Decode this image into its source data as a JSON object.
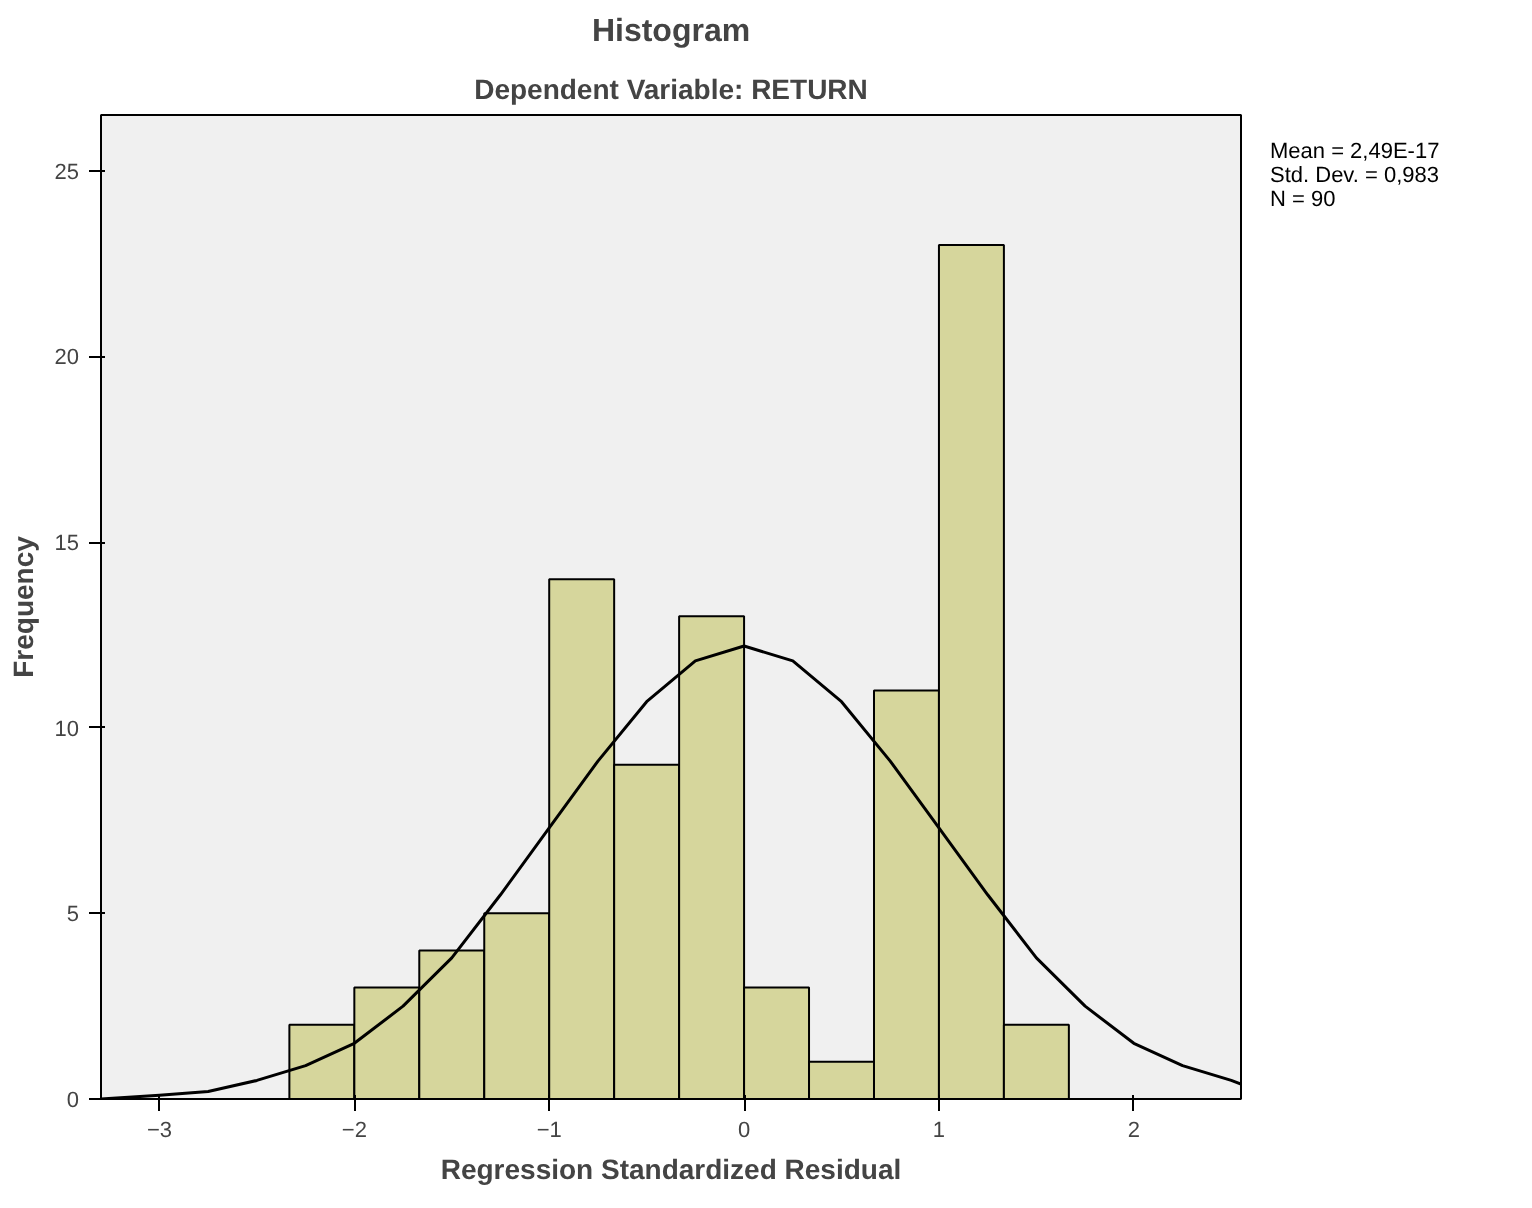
{
  "chart_data": {
    "type": "histogram",
    "title": "Histogram",
    "subtitle": "Dependent Variable: RETURN",
    "xlabel": "Regression Standardized Residual",
    "ylabel": "Frequency",
    "bins": [
      -2.3333,
      -2.0,
      -1.6667,
      -1.3333,
      -1.0,
      -0.6667,
      -0.3333,
      0.0,
      0.3333,
      0.6667,
      1.0,
      1.3333,
      1.6667
    ],
    "values": [
      2,
      3,
      4,
      5,
      14,
      9,
      13,
      3,
      1,
      11,
      23,
      2
    ],
    "color": "#d6d69c",
    "series": [
      {
        "type": "line",
        "color": "#000000",
        "x": [
          -3.3,
          -3.0,
          -2.75,
          -2.5,
          -2.25,
          -2.0,
          -1.75,
          -1.5,
          -1.25,
          -1.0,
          -0.75,
          -0.5,
          -0.25,
          0.0,
          0.25,
          0.5,
          0.75,
          1.0,
          1.25,
          1.5,
          1.75,
          2.0,
          2.25,
          2.5,
          2.55
        ],
        "values": [
          0.0,
          0.1,
          0.2,
          0.5,
          0.9,
          1.5,
          2.5,
          3.8,
          5.5,
          7.3,
          9.1,
          10.7,
          11.8,
          12.2,
          11.8,
          10.7,
          9.1,
          7.3,
          5.5,
          3.8,
          2.5,
          1.5,
          0.9,
          0.5,
          0.4
        ]
      }
    ],
    "xlim": [
      -3.3,
      2.55
    ],
    "ylim": [
      0,
      26.5
    ],
    "xticks": [
      -3,
      -2,
      -1,
      0,
      1,
      2
    ],
    "yticks": [
      0,
      5,
      10,
      15,
      20,
      25
    ],
    "grid": false,
    "annotations": [
      "Mean = 2,49E-17",
      "Std. Dev. = 0,983",
      "N = 90"
    ]
  }
}
